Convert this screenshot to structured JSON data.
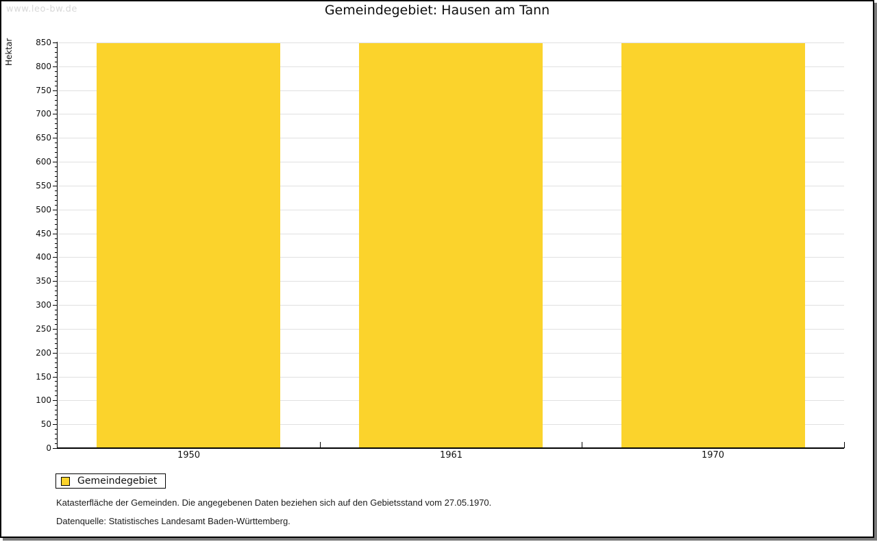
{
  "page": {
    "watermark": "www.leo-bw.de",
    "title": "Gemeindegebiet: Hausen am Tann"
  },
  "chart_data": {
    "type": "bar",
    "title": "Gemeindegebiet: Hausen am Tann",
    "categories": [
      "1950",
      "1961",
      "1970"
    ],
    "series": [
      {
        "name": "Gemeindegebiet",
        "values": [
          848,
          848,
          848
        ]
      }
    ],
    "xlabel": "",
    "ylabel": "Hektar",
    "ylim": [
      0,
      850
    ],
    "y_major_step": 50,
    "y_minor_step": 10,
    "grid": true,
    "legend_position": "bottom-left"
  },
  "legend": {
    "items": [
      {
        "label": "Gemeindegebiet",
        "color": "#fbd32c"
      }
    ]
  },
  "footnotes": [
    "Katasterfläche der Gemeinden. Die angegebenen Daten beziehen sich auf den Gebietsstand vom 27.05.1970.",
    "Datenquelle: Statistisches Landesamt Baden-Württemberg."
  ],
  "colors": {
    "bar": "#fbd32c",
    "grid": "#e0e0e0",
    "axis": "#000000",
    "watermark": "#d8d8d8",
    "text": "#111111"
  }
}
